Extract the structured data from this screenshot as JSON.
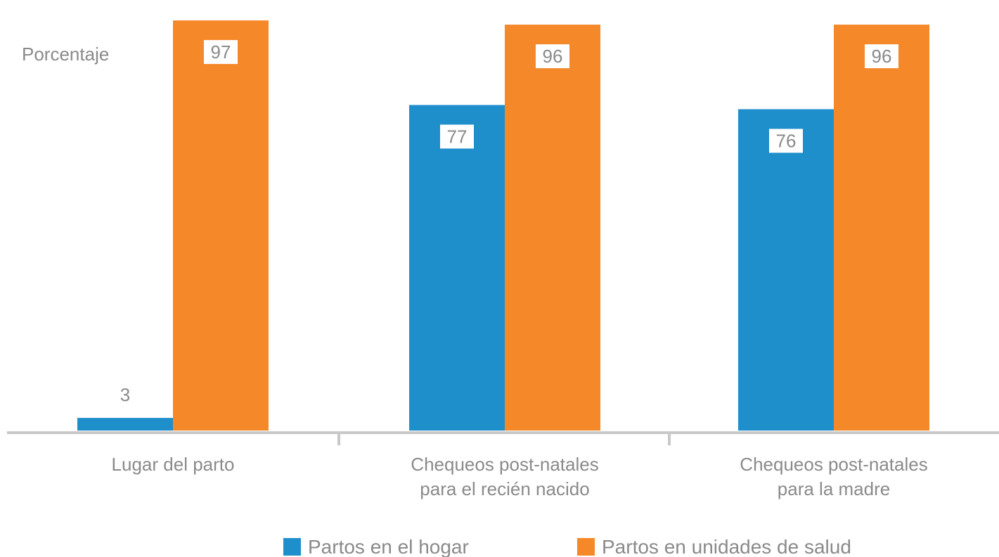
{
  "chart_data": {
    "type": "bar",
    "ylabel": "Porcentaje",
    "categories": [
      [
        "Lugar del parto"
      ],
      [
        "Chequeos post-natales",
        "para el recién nacido"
      ],
      [
        "Chequeos post-natales",
        "para la madre"
      ]
    ],
    "series": [
      {
        "name": "Partos en el hogar",
        "color": "#1f8fcc",
        "values": [
          3,
          77,
          76
        ]
      },
      {
        "name": "Partos en unidades de salud",
        "color": "#f5892a",
        "values": [
          97,
          96,
          96
        ]
      }
    ],
    "ylim": [
      0,
      100
    ],
    "grid": false,
    "legend_position": "bottom"
  }
}
